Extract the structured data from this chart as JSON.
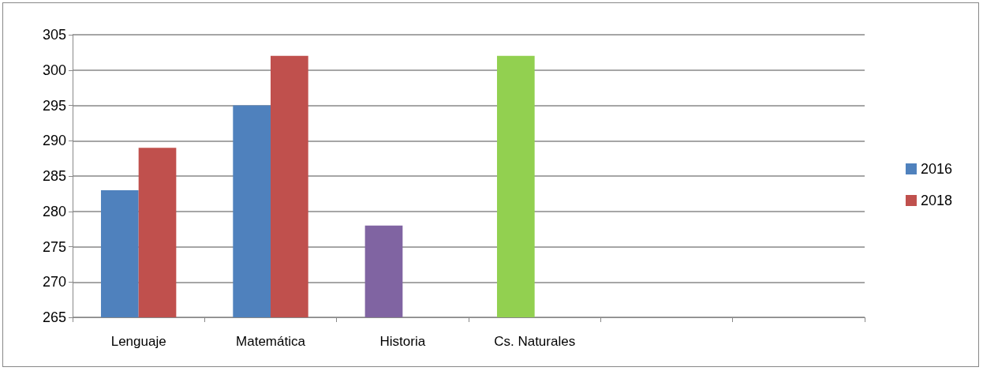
{
  "chart_data": {
    "type": "bar",
    "categories": [
      "Lenguaje",
      "Matemática",
      "Historia",
      "Cs. Naturales",
      null,
      null
    ],
    "series": [
      {
        "name": "2016",
        "color": "#4f81bd",
        "colors": [
          "#4f81bd",
          "#4f81bd",
          "#8064a2",
          "#92d050",
          null,
          null
        ],
        "values": [
          283,
          295,
          278,
          302,
          null,
          null
        ]
      },
      {
        "name": "2018",
        "color": "#c0504d",
        "values": [
          289,
          302,
          null,
          null,
          null,
          null
        ]
      }
    ],
    "ylim": [
      265,
      305
    ],
    "yticks": [
      265,
      270,
      275,
      280,
      285,
      290,
      295,
      300,
      305
    ],
    "grid": "y",
    "legend": "right"
  }
}
